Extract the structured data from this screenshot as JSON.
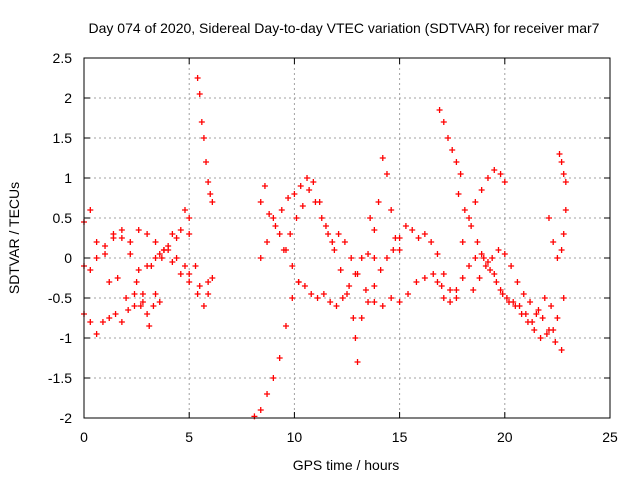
{
  "chart_data": {
    "type": "scatter",
    "title": "Day 074 of 2020, Sidereal Day-to-day VTEC variation (SDTVAR) for receiver mar7",
    "xlabel": "GPS time / hours",
    "ylabel": "SDTVAR / TECUs",
    "xlim": [
      0,
      25
    ],
    "ylim": [
      -2,
      2.5
    ],
    "xticks": [
      "0",
      "5",
      "10",
      "15",
      "20",
      "25"
    ],
    "yticks": [
      "-2",
      "-1.5",
      "-1",
      "-0.5",
      "0",
      "0.5",
      "1",
      "1.5",
      "2",
      "2.5"
    ],
    "grid": true,
    "marker": "plus",
    "colors": {
      "series": "#ff0000",
      "grid": "#a0a0a0",
      "axis": "#000000"
    },
    "series": [
      {
        "name": "s1",
        "x": [
          0.0,
          0.3,
          0.6,
          1.0,
          1.4,
          1.8,
          2.2,
          2.6,
          3.0,
          3.4,
          3.8,
          4.2,
          4.6,
          5.0
        ],
        "y": [
          0.45,
          0.6,
          0.2,
          0.05,
          0.25,
          0.35,
          0.2,
          0.35,
          0.3,
          0.2,
          0.1,
          0.3,
          0.35,
          0.3
        ]
      },
      {
        "name": "s2",
        "x": [
          0.0,
          0.3,
          0.6,
          1.0,
          1.4,
          1.8,
          2.2,
          2.6,
          3.0,
          3.4,
          3.8,
          4.2,
          4.6,
          5.0,
          5.4,
          5.9
        ],
        "y": [
          -0.1,
          -0.15,
          0.0,
          0.15,
          0.3,
          0.25,
          0.05,
          -0.15,
          -0.1,
          0.0,
          0.1,
          -0.05,
          -0.2,
          -0.3,
          -0.45,
          -0.3
        ]
      },
      {
        "name": "s3",
        "x": [
          0.0,
          0.3,
          0.6,
          0.9,
          1.2,
          1.5,
          1.8,
          2.1,
          2.4,
          2.7,
          3.0,
          3.3,
          3.6
        ],
        "y": [
          -0.7,
          -0.8,
          -0.95,
          -0.8,
          -0.75,
          -0.7,
          -0.8,
          -0.65,
          -0.45,
          -0.6,
          -0.7,
          -0.6,
          -0.55
        ]
      },
      {
        "name": "s4",
        "x": [
          1.2,
          1.6,
          2.0,
          2.4,
          2.8,
          3.2,
          3.6,
          4.0,
          4.4,
          4.8,
          5.0
        ],
        "y": [
          -0.3,
          -0.25,
          -0.5,
          -0.6,
          -0.45,
          -0.1,
          0.05,
          0.1,
          0.0,
          -0.1,
          -0.2
        ]
      },
      {
        "name": "s5",
        "x": [
          2.5,
          2.8,
          3.1,
          3.4,
          3.7,
          4.0,
          4.4,
          4.8,
          5.0
        ],
        "y": [
          -0.3,
          -0.55,
          -0.85,
          -0.45,
          0.0,
          0.15,
          0.25,
          0.6,
          0.5
        ]
      },
      {
        "name": "s6",
        "x": [
          5.4,
          5.5,
          5.6,
          5.7,
          5.8,
          5.9,
          6.0,
          6.1
        ],
        "y": [
          2.25,
          2.05,
          1.7,
          1.5,
          1.2,
          0.95,
          0.8,
          0.7
        ]
      },
      {
        "name": "s7",
        "x": [
          5.3,
          5.5,
          5.7,
          5.9,
          6.1
        ],
        "y": [
          -0.1,
          -0.35,
          -0.6,
          -0.45,
          -0.25
        ]
      },
      {
        "name": "s8",
        "x": [
          8.1,
          8.4,
          8.7,
          9.0,
          9.3,
          9.6,
          9.9,
          10.2
        ],
        "y": [
          -1.98,
          -1.9,
          -1.7,
          -1.5,
          -1.25,
          -0.85,
          -0.5,
          -0.3
        ]
      },
      {
        "name": "s9",
        "x": [
          8.4,
          8.6,
          8.8,
          9.1,
          9.4,
          9.7,
          10.0,
          10.3,
          10.6,
          10.9,
          11.2,
          11.5,
          11.8,
          12.1,
          12.4,
          12.7,
          13.0,
          13.4,
          13.8,
          14.2,
          14.6,
          15.0,
          15.4,
          15.8,
          16.2,
          16.6,
          17.0
        ],
        "y": [
          0.7,
          0.9,
          0.55,
          0.4,
          0.6,
          0.75,
          0.8,
          0.9,
          1.0,
          0.95,
          0.7,
          0.4,
          0.2,
          0.3,
          0.2,
          0.0,
          -0.2,
          -0.4,
          -0.55,
          -0.6,
          -0.5,
          -0.55,
          -0.45,
          -0.3,
          -0.25,
          -0.2,
          -0.35
        ]
      },
      {
        "name": "s10",
        "x": [
          8.4,
          8.7,
          9.0,
          9.3,
          9.6,
          9.9,
          10.2,
          10.5,
          10.8,
          11.1,
          11.4,
          11.7,
          12.0,
          12.3,
          12.6,
          12.9,
          13.2,
          13.5,
          13.8
        ],
        "y": [
          0.0,
          0.2,
          0.5,
          0.3,
          0.1,
          -0.1,
          -0.3,
          -0.35,
          -0.45,
          -0.5,
          -0.45,
          -0.55,
          -0.6,
          -0.5,
          -0.35,
          -0.2,
          0.0,
          0.05,
          0.0
        ]
      },
      {
        "name": "s11",
        "x": [
          9.5,
          9.8,
          10.1,
          10.4,
          10.7,
          11.0,
          11.3,
          11.6,
          11.9,
          12.2,
          12.5,
          12.8,
          13.0
        ],
        "y": [
          0.1,
          0.3,
          0.5,
          0.65,
          0.85,
          0.7,
          0.5,
          0.3,
          0.1,
          -0.15,
          -0.45,
          -0.75,
          -1.3
        ]
      },
      {
        "name": "s12",
        "x": [
          12.9,
          13.2,
          13.5,
          13.8,
          14.1,
          14.4,
          14.7,
          15.0,
          15.3,
          15.6,
          15.9,
          16.2,
          16.5,
          16.8,
          17.1,
          17.4,
          17.7
        ],
        "y": [
          -1.0,
          -0.75,
          -0.55,
          -0.35,
          -0.15,
          0.0,
          0.1,
          0.25,
          0.4,
          0.35,
          0.25,
          0.3,
          0.2,
          0.05,
          -0.2,
          -0.4,
          -0.5
        ]
      },
      {
        "name": "s13",
        "x": [
          13.6,
          13.8,
          14.0,
          14.2,
          14.4,
          14.6,
          14.8,
          15.0
        ],
        "y": [
          0.5,
          0.35,
          0.7,
          1.25,
          1.05,
          0.6,
          0.25,
          0.1
        ]
      },
      {
        "name": "s14",
        "x": [
          16.9,
          17.1,
          17.3,
          17.5,
          17.7,
          17.9
        ],
        "y": [
          1.85,
          1.7,
          1.5,
          1.35,
          1.2,
          1.05
        ]
      },
      {
        "name": "s15",
        "x": [
          16.8,
          17.1,
          17.4,
          17.7,
          18.0,
          18.3,
          18.6,
          18.9,
          19.2,
          19.5,
          19.8,
          20.1,
          20.4,
          20.7,
          21.0,
          21.3,
          21.6,
          21.9,
          22.2,
          22.5,
          22.8
        ],
        "y": [
          -0.3,
          -0.5,
          -0.55,
          -0.4,
          -0.25,
          -0.1,
          0.0,
          0.05,
          -0.05,
          -0.2,
          -0.4,
          -0.5,
          -0.55,
          -0.6,
          -0.7,
          -0.8,
          -0.65,
          -0.5,
          -0.6,
          -0.75,
          -0.5
        ]
      },
      {
        "name": "s16",
        "x": [
          17.8,
          18.1,
          18.4,
          18.7,
          19.0,
          19.3,
          19.6,
          19.9,
          20.2,
          20.5,
          20.8,
          21.1,
          21.4,
          21.7,
          22.0,
          22.3
        ],
        "y": [
          0.8,
          0.6,
          0.4,
          0.2,
          0.0,
          -0.15,
          -0.3,
          -0.45,
          -0.55,
          -0.6,
          -0.7,
          -0.8,
          -0.9,
          -1.0,
          -0.95,
          -0.9
        ]
      },
      {
        "name": "s17",
        "x": [
          18.0,
          18.3,
          18.6,
          18.9,
          19.2,
          19.5,
          19.8,
          20.0
        ],
        "y": [
          0.2,
          0.5,
          0.7,
          0.85,
          1.0,
          1.1,
          1.05,
          0.95
        ]
      },
      {
        "name": "s18",
        "x": [
          18.5,
          18.8,
          19.1,
          19.4,
          19.7,
          20.0,
          20.3,
          20.6,
          20.9,
          21.2,
          21.5,
          21.8,
          22.1,
          22.4,
          22.7
        ],
        "y": [
          -0.4,
          -0.25,
          -0.1,
          0.0,
          0.1,
          0.05,
          -0.1,
          -0.3,
          -0.45,
          -0.55,
          -0.7,
          -0.75,
          -0.9,
          -1.05,
          -1.15
        ]
      },
      {
        "name": "s19",
        "x": [
          22.1,
          22.3,
          22.5,
          22.7,
          22.8,
          22.9
        ],
        "y": [
          0.5,
          0.2,
          0.0,
          0.1,
          0.3,
          0.6
        ]
      },
      {
        "name": "s20",
        "x": [
          22.6,
          22.7,
          22.8,
          22.9
        ],
        "y": [
          1.3,
          1.2,
          1.05,
          0.95
        ]
      }
    ]
  }
}
